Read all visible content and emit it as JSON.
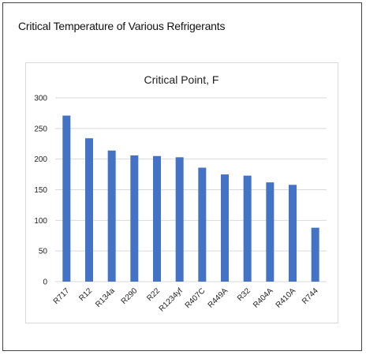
{
  "figure": {
    "title": "Critical Temperature of Various Refrigerants"
  },
  "chart_data": {
    "type": "bar",
    "title": "Critical Point, F",
    "xlabel": "",
    "ylabel": "",
    "categories": [
      "R717",
      "R12",
      "R134a",
      "R290",
      "R22",
      "R1234yf",
      "R407C",
      "R449A",
      "R32",
      "R404A",
      "R410A",
      "R744"
    ],
    "values": [
      271,
      234,
      214,
      206,
      205,
      203,
      186,
      175,
      173,
      162,
      158,
      88
    ],
    "ylim": [
      0,
      300
    ],
    "yticks": [
      0,
      50,
      100,
      150,
      200,
      250,
      300
    ],
    "grid": true,
    "legend": "none",
    "colors": {
      "bar": "#4472c4",
      "grid": "#d9d9d9"
    }
  }
}
